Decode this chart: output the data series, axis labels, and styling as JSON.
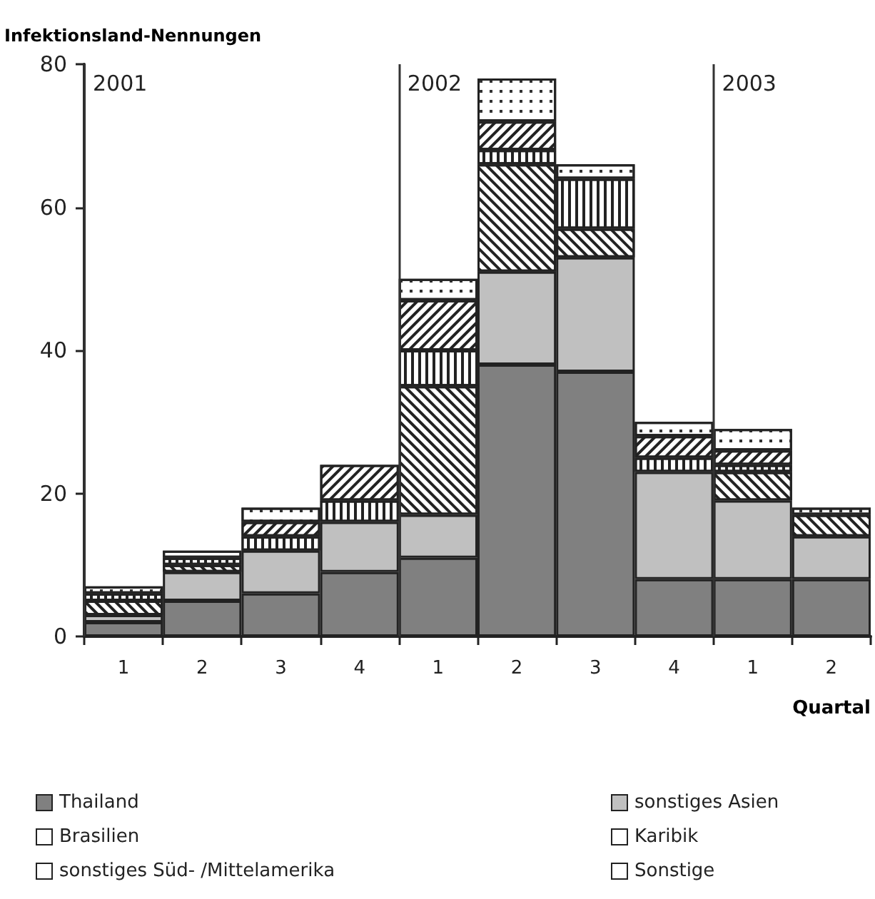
{
  "chart_data": {
    "type": "bar",
    "stacked": true,
    "ylabel": "Infektionsland-Nennungen",
    "xlabel": "Quartal",
    "categories": [
      "1",
      "2",
      "3",
      "4",
      "1",
      "2",
      "3",
      "4",
      "1",
      "2"
    ],
    "ylim": [
      0,
      80
    ],
    "yticks": [
      0,
      20,
      40,
      60,
      80
    ],
    "grid": false,
    "legend": "bottom",
    "series": [
      {
        "name": "Thailand",
        "color": "#808080",
        "values": [
          2,
          5,
          6,
          9,
          11,
          38,
          37,
          8,
          8,
          8
        ]
      },
      {
        "name": "sonstiges Asien",
        "color": "#c0c0c0",
        "values": [
          1,
          4,
          6,
          7,
          6,
          13,
          16,
          15,
          11,
          6
        ]
      },
      {
        "name": "Brasilien",
        "color": "#ffffff",
        "values": [
          2,
          1,
          0,
          0,
          18,
          15,
          4,
          0,
          4,
          3
        ]
      },
      {
        "name": "Karibik",
        "color": "#ffffff",
        "values": [
          1,
          1,
          2,
          3,
          5,
          2,
          7,
          2,
          1,
          0
        ]
      },
      {
        "name": "sonstiges Süd- /Mittelamerika",
        "color": "#ffffff",
        "values": [
          0,
          0,
          2,
          5,
          7,
          4,
          0,
          3,
          2,
          0
        ]
      },
      {
        "name": "Sonstige",
        "color": "#ffffff",
        "values": [
          1,
          1,
          2,
          0,
          3,
          6,
          2,
          2,
          3,
          1
        ]
      }
    ],
    "annotations": [
      "2001",
      "2002",
      "2003"
    ]
  }
}
